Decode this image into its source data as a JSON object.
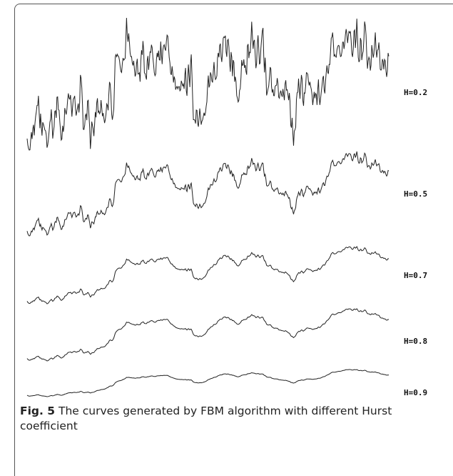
{
  "figure": {
    "curves": [
      {
        "label": "H=0.2"
      },
      {
        "label": "H=0.5"
      },
      {
        "label": "H=0.7"
      },
      {
        "label": "H=0.8"
      },
      {
        "label": "H=0.9"
      }
    ],
    "caption": {
      "label": "Fig. 5",
      "text": "The curves generated by FBM algorithm with different Hurst coefficient"
    }
  }
}
